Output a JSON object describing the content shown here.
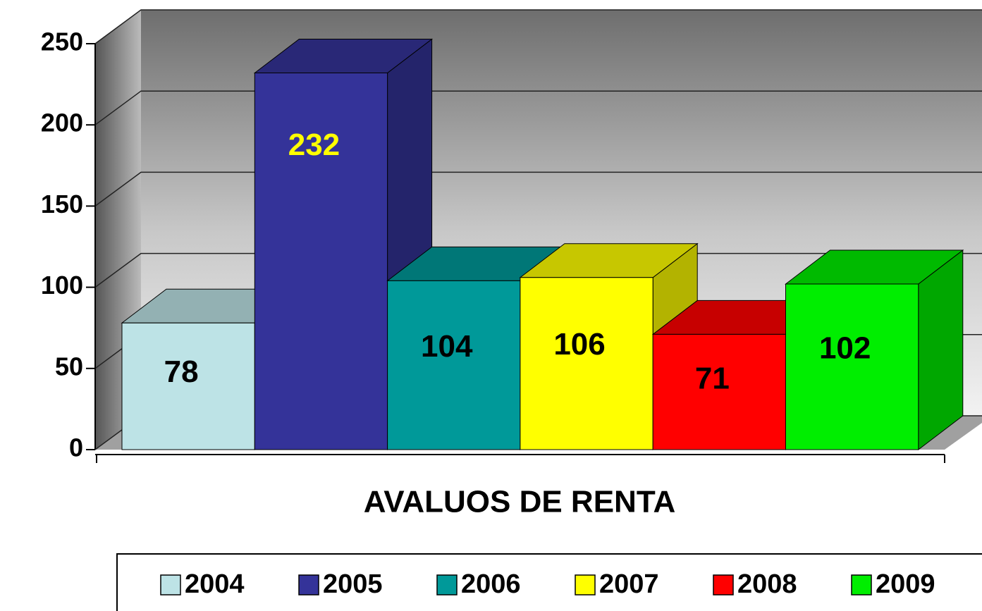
{
  "chart_data": {
    "type": "bar3d",
    "categories": [
      "AVALUOS DE RENTA"
    ],
    "series": [
      {
        "name": "2004",
        "color": "#bde3e6",
        "values": [
          78
        ]
      },
      {
        "name": "2005",
        "color": "#343399",
        "values": [
          232
        ]
      },
      {
        "name": "2006",
        "color": "#009999",
        "values": [
          104
        ]
      },
      {
        "name": "2007",
        "color": "#ffff00",
        "values": [
          106
        ]
      },
      {
        "name": "2008",
        "color": "#ff0000",
        "values": [
          71
        ]
      },
      {
        "name": "2009",
        "color": "#00ee00",
        "values": [
          102
        ]
      }
    ],
    "ylim": [
      0,
      250
    ],
    "yticks": [
      0,
      50,
      100,
      150,
      200,
      250
    ],
    "grid": true
  }
}
